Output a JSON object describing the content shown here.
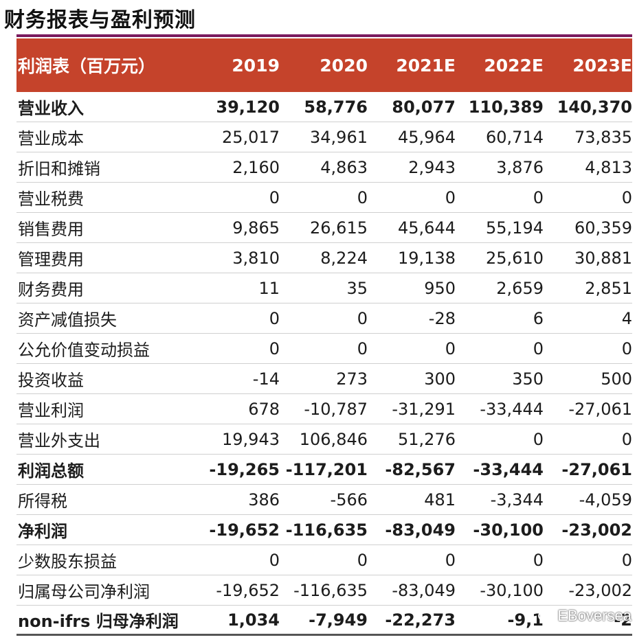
{
  "page": {
    "title": "财务报表与盈利预测"
  },
  "table": {
    "columns": [
      "利润表（百万元）",
      "2019",
      "2020",
      "2021E",
      "2022E",
      "2023E"
    ],
    "rows": [
      {
        "label": "营业收入",
        "bold": true,
        "values": [
          "39,120",
          "58,776",
          "80,077",
          "110,389",
          "140,370"
        ]
      },
      {
        "label": "营业成本",
        "bold": false,
        "values": [
          "25,017",
          "34,961",
          "45,964",
          "60,714",
          "73,835"
        ]
      },
      {
        "label": "折旧和摊销",
        "bold": false,
        "values": [
          "2,160",
          "4,863",
          "2,943",
          "3,876",
          "4,813"
        ]
      },
      {
        "label": "营业税费",
        "bold": false,
        "values": [
          "0",
          "0",
          "0",
          "0",
          "0"
        ]
      },
      {
        "label": "销售费用",
        "bold": false,
        "values": [
          "9,865",
          "26,615",
          "45,644",
          "55,194",
          "60,359"
        ]
      },
      {
        "label": "管理费用",
        "bold": false,
        "values": [
          "3,810",
          "8,224",
          "19,138",
          "25,610",
          "30,881"
        ]
      },
      {
        "label": "财务费用",
        "bold": false,
        "values": [
          "11",
          "35",
          "950",
          "2,659",
          "2,851"
        ]
      },
      {
        "label": "资产减值损失",
        "bold": false,
        "values": [
          "0",
          "0",
          "-28",
          "6",
          "4"
        ]
      },
      {
        "label": "公允价值变动损益",
        "bold": false,
        "values": [
          "0",
          "0",
          "0",
          "0",
          "0"
        ]
      },
      {
        "label": "投资收益",
        "bold": false,
        "values": [
          "-14",
          "273",
          "300",
          "350",
          "500"
        ]
      },
      {
        "label": "营业利润",
        "bold": false,
        "values": [
          "678",
          "-10,787",
          "-31,291",
          "-33,444",
          "-27,061"
        ]
      },
      {
        "label": "营业外支出",
        "bold": false,
        "values": [
          "19,943",
          "106,846",
          "51,276",
          "0",
          "0"
        ]
      },
      {
        "label": "利润总额",
        "bold": true,
        "values": [
          "-19,265",
          "-117,201",
          "-82,567",
          "-33,444",
          "-27,061"
        ]
      },
      {
        "label": "所得税",
        "bold": false,
        "values": [
          "386",
          "-566",
          "481",
          "-3,344",
          "-4,059"
        ]
      },
      {
        "label": "净利润",
        "bold": true,
        "values": [
          "-19,652",
          "-116,635",
          "-83,049",
          "-30,100",
          "-23,002"
        ]
      },
      {
        "label": "少数股东损益",
        "bold": false,
        "values": [
          "0",
          "0",
          "0",
          "0",
          "0"
        ]
      },
      {
        "label": "归属母公司净利润",
        "bold": false,
        "values": [
          "-19,652",
          "-116,635",
          "-83,049",
          "-30,100",
          "-23,002"
        ]
      },
      {
        "label": "non-ifrs 归母净利润",
        "bold": true,
        "values": [
          "1,034",
          "-7,949",
          "-22,273",
          "-9,1",
          "-2"
        ]
      }
    ]
  },
  "watermark": {
    "text": "EBoversea",
    "icon": "wechat-icon"
  },
  "colors": {
    "header_bg": "#c5432b",
    "accent_line": "#7a1a5e"
  }
}
